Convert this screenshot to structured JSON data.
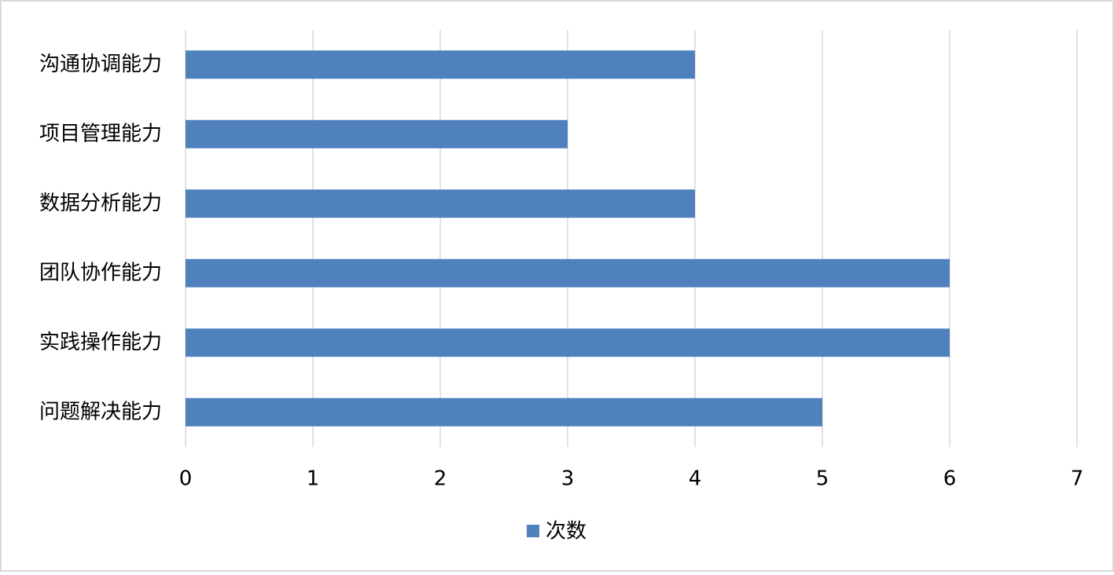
{
  "chart_data": {
    "type": "bar",
    "orientation": "horizontal",
    "categories": [
      "沟通协调能力",
      "项目管理能力",
      "数据分析能力",
      "团队协作能力",
      "实践操作能力",
      "问题解决能力"
    ],
    "series": [
      {
        "name": "次数",
        "color": "#4f81bd",
        "values": [
          4,
          3,
          4,
          6,
          6,
          5
        ]
      }
    ],
    "xlim": [
      0,
      7
    ],
    "xticks": [
      0,
      1,
      2,
      3,
      4,
      5,
      6,
      7
    ],
    "grid": true,
    "legend": "bottom"
  }
}
